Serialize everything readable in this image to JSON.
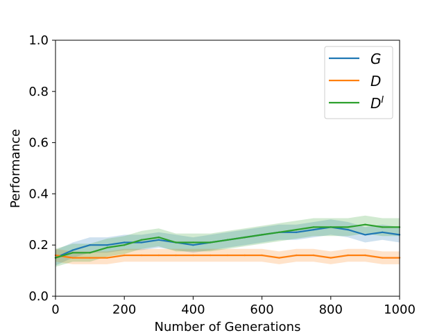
{
  "chart_data": {
    "type": "line",
    "title": "",
    "xlabel": "Number of Generations",
    "ylabel": "Performance",
    "xlim": [
      0,
      1000
    ],
    "ylim": [
      0.0,
      1.0
    ],
    "xticks": [
      0,
      200,
      400,
      600,
      800,
      1000
    ],
    "xtick_labels": [
      "0",
      "200",
      "400",
      "600",
      "800",
      "1000"
    ],
    "yticks": [
      0.0,
      0.2,
      0.4,
      0.6,
      0.8,
      1.0
    ],
    "ytick_labels": [
      "0.0",
      "0.2",
      "0.4",
      "0.6",
      "0.8",
      "1.0"
    ],
    "grid": false,
    "legend_position": "top-right",
    "x": [
      0,
      50,
      100,
      150,
      200,
      250,
      300,
      350,
      400,
      450,
      500,
      550,
      600,
      650,
      700,
      750,
      800,
      850,
      900,
      950,
      1000
    ],
    "series": [
      {
        "name": "G",
        "label_base": "G",
        "label_sup": "",
        "color": "#1f77b4",
        "values": [
          0.15,
          0.18,
          0.2,
          0.2,
          0.21,
          0.21,
          0.22,
          0.21,
          0.2,
          0.21,
          0.22,
          0.23,
          0.24,
          0.25,
          0.25,
          0.26,
          0.27,
          0.26,
          0.24,
          0.25,
          0.24
        ],
        "band": [
          0.03,
          0.03,
          0.03,
          0.03,
          0.03,
          0.03,
          0.03,
          0.03,
          0.03,
          0.03,
          0.03,
          0.03,
          0.03,
          0.03,
          0.03,
          0.03,
          0.03,
          0.03,
          0.03,
          0.03,
          0.03
        ]
      },
      {
        "name": "D",
        "label_base": "D",
        "label_sup": "",
        "color": "#ff7f0e",
        "values": [
          0.16,
          0.15,
          0.15,
          0.15,
          0.16,
          0.16,
          0.16,
          0.16,
          0.16,
          0.16,
          0.16,
          0.16,
          0.16,
          0.15,
          0.16,
          0.16,
          0.15,
          0.16,
          0.16,
          0.15,
          0.15
        ],
        "band": [
          0.025,
          0.025,
          0.025,
          0.025,
          0.025,
          0.025,
          0.025,
          0.025,
          0.025,
          0.025,
          0.025,
          0.025,
          0.025,
          0.025,
          0.025,
          0.025,
          0.025,
          0.025,
          0.025,
          0.025,
          0.025
        ]
      },
      {
        "name": "D^I",
        "label_base": "D",
        "label_sup": "I",
        "color": "#2ca02c",
        "values": [
          0.15,
          0.17,
          0.17,
          0.19,
          0.2,
          0.22,
          0.23,
          0.21,
          0.21,
          0.21,
          0.22,
          0.23,
          0.24,
          0.25,
          0.26,
          0.27,
          0.27,
          0.27,
          0.28,
          0.27,
          0.27
        ],
        "band": [
          0.035,
          0.035,
          0.035,
          0.035,
          0.035,
          0.035,
          0.035,
          0.035,
          0.035,
          0.035,
          0.035,
          0.035,
          0.035,
          0.035,
          0.035,
          0.035,
          0.035,
          0.035,
          0.035,
          0.035,
          0.035
        ]
      }
    ]
  }
}
